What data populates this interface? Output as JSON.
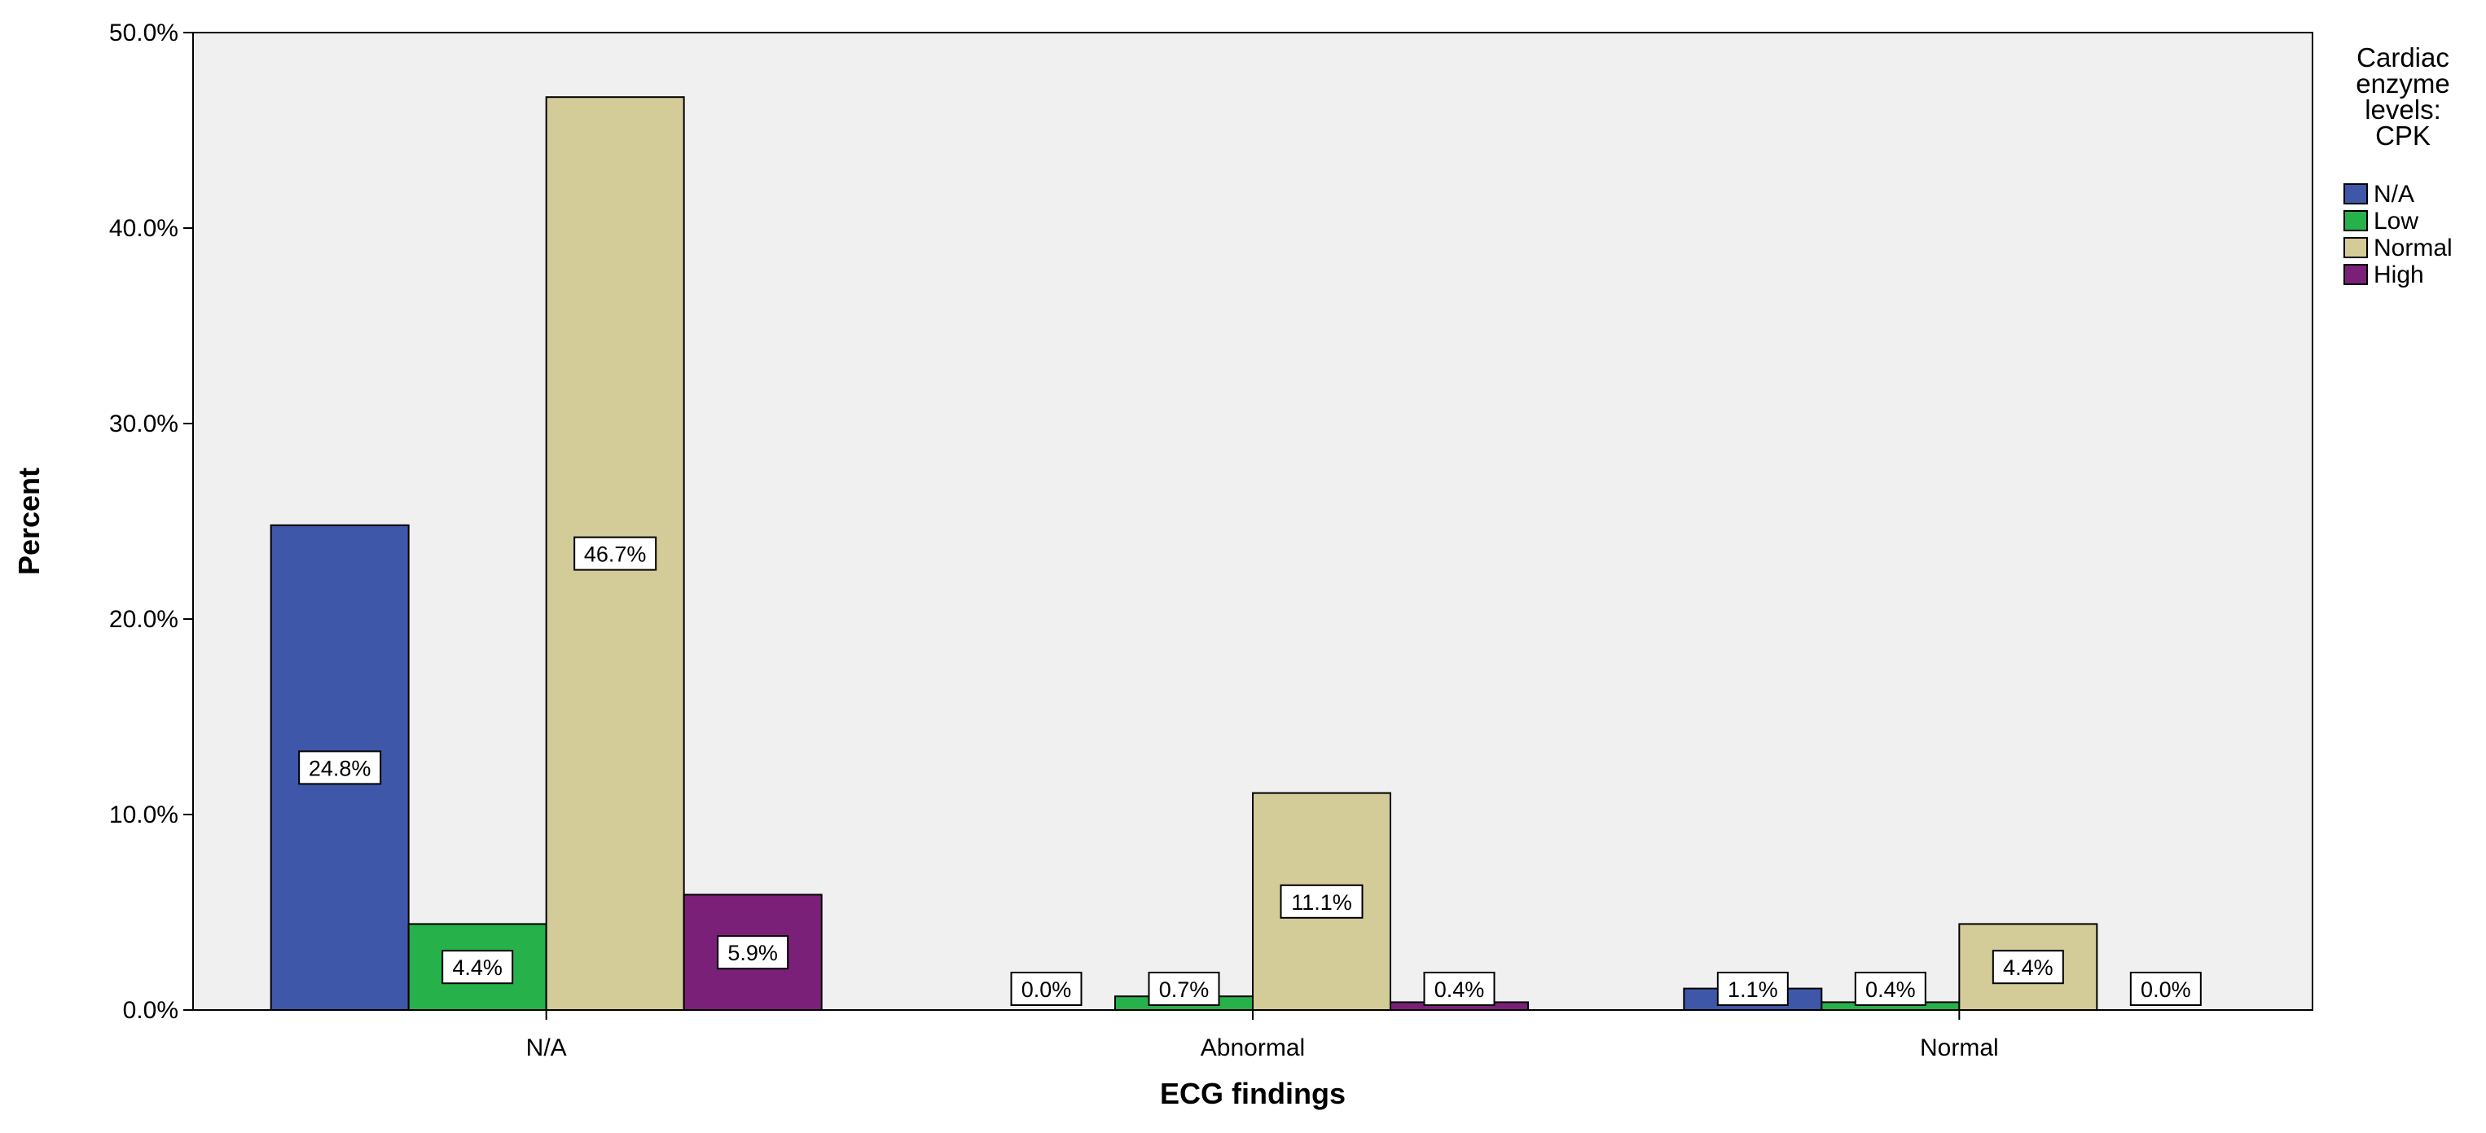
{
  "chart_data": {
    "type": "bar",
    "xlabel": "ECG findings",
    "ylabel": "Percent",
    "ylim": [
      0,
      50
    ],
    "yticks": [
      "0.0%",
      "10.0%",
      "20.0%",
      "30.0%",
      "40.0%",
      "50.0%"
    ],
    "categories": [
      "N/A",
      "Abnormal",
      "Normal"
    ],
    "legend_title": [
      "Cardiac",
      "enzyme",
      "levels:",
      "CPK"
    ],
    "legend_position": "right",
    "grid": false,
    "series": [
      {
        "name": "N/A",
        "color": "#3f57a8",
        "values": [
          24.8,
          0.0,
          1.1
        ],
        "labels": [
          "24.8%",
          "0.0%",
          "1.1%"
        ]
      },
      {
        "name": "Low",
        "color": "#26b14a",
        "values": [
          4.4,
          0.7,
          0.4
        ],
        "labels": [
          "4.4%",
          "0.7%",
          "0.4%"
        ]
      },
      {
        "name": "Normal",
        "color": "#d4cc98",
        "values": [
          46.7,
          11.1,
          4.4
        ],
        "labels": [
          "46.7%",
          "11.1%",
          "4.4%"
        ]
      },
      {
        "name": "High",
        "color": "#7b2079",
        "values": [
          5.9,
          0.4,
          0.0
        ],
        "labels": [
          "5.9%",
          "0.4%",
          "0.0%"
        ]
      }
    ],
    "plot_background": "#f0f0f0"
  }
}
